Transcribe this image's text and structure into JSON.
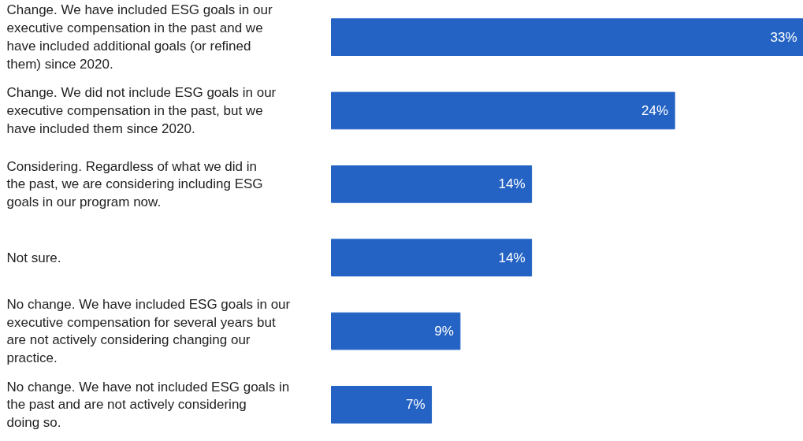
{
  "chart_data": {
    "type": "bar",
    "orientation": "horizontal",
    "categories": [
      "Change. We have included ESG goals in our executive compensation in the past and we have included additional goals (or refined them) since 2020.",
      "Change. We did not include ESG goals in our executive compensation in the past, but we have included them since 2020.",
      "Considering. Regardless of what we did in the past, we are considering including ESG goals in our program now.",
      "Not sure.",
      "No change. We have included ESG goals in our executive compensation for several years but are not actively considering changing our practice.",
      "No change. We have not included ESG goals in the past and are not actively considering doing so."
    ],
    "values": [
      33,
      24,
      14,
      14,
      9,
      7
    ],
    "value_labels": [
      "33%",
      "24%",
      "14%",
      "14%",
      "9%",
      "7%"
    ],
    "color": "#2463c4"
  }
}
